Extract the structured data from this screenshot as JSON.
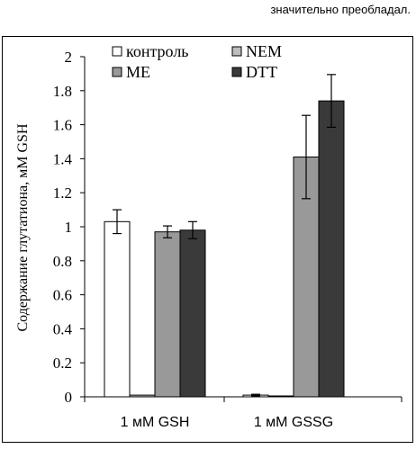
{
  "page": {
    "top_text": "значительно преобладал."
  },
  "chart_data": {
    "type": "bar",
    "title": "",
    "xlabel": "",
    "ylabel": "Содержание глутатиона, мМ GSH",
    "ylim": [
      0,
      2
    ],
    "yticks": [
      "0",
      "0.2",
      "0.4",
      "0.6",
      "0.8",
      "1",
      "1.2",
      "1.4",
      "1.6",
      "1.8",
      "2"
    ],
    "categories": [
      "1 мМ GSH",
      "1 мМ GSSG"
    ],
    "legend_position": "top",
    "series": [
      {
        "name": "контроль",
        "color": "#ffffff",
        "values": [
          1.03,
          0.01
        ],
        "errors": [
          0.07,
          0.005
        ]
      },
      {
        "name": "NEM",
        "color": "#bdbdbd",
        "values": [
          0.01,
          0.0
        ],
        "errors": [
          0,
          0
        ]
      },
      {
        "name": "ME",
        "color": "#999999",
        "values": [
          0.97,
          1.41
        ],
        "errors": [
          0.035,
          0.245
        ]
      },
      {
        "name": "DTT",
        "color": "#3a3a3a",
        "values": [
          0.98,
          1.74
        ],
        "errors": [
          0.05,
          0.155
        ]
      }
    ]
  }
}
